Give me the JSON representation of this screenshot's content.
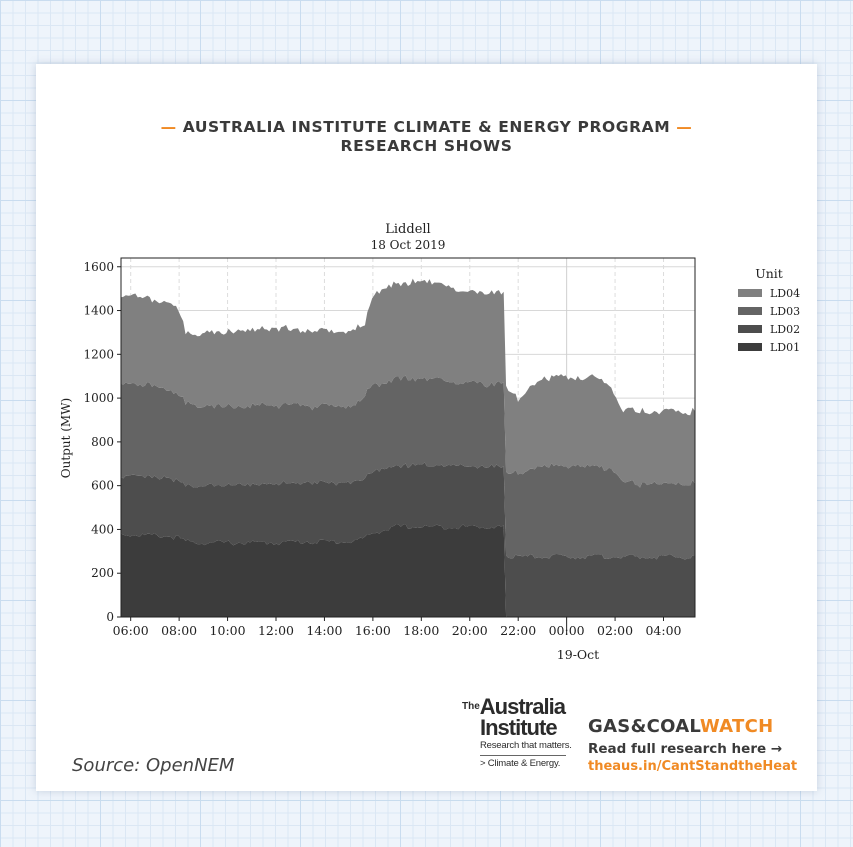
{
  "header": {
    "dash_left": "—",
    "line1": "AUSTRALIA INSTITUTE CLIMATE & ENERGY PROGRAM",
    "dash_right": "—",
    "line2": "RESEARCH SHOWS"
  },
  "colors": {
    "accent": "#f08a24",
    "LD01": "#3c3c3c",
    "LD02": "#4d4d4d",
    "LD03": "#646464",
    "LD04": "#808080"
  },
  "chart_data": {
    "type": "area",
    "stacked": true,
    "title": "Liddell",
    "subtitle": "18 Oct 2019",
    "xlabel": "",
    "ylabel": "Output (MW)",
    "ylim": [
      0,
      1640
    ],
    "yticks": [
      "0",
      "200",
      "400",
      "600",
      "800",
      "1000",
      "1200",
      "1400",
      "1600"
    ],
    "xticks": [
      "06:00",
      "08:00",
      "10:00",
      "12:00",
      "14:00",
      "16:00",
      "18:00",
      "20:00",
      "22:00",
      "00:00",
      "02:00",
      "04:00"
    ],
    "xsublabel": "19-Oct",
    "xrange_hours": [
      5.6,
      29.3
    ],
    "grid": true,
    "legend": {
      "title": "Unit",
      "placement": "right",
      "entries": [
        "LD04",
        "LD03",
        "LD02",
        "LD01"
      ]
    },
    "x": [
      5.6,
      6.5,
      7.5,
      7.9,
      8.3,
      9,
      10,
      11,
      12,
      13,
      14,
      15,
      15.3,
      15.7,
      16,
      17,
      18,
      19,
      19.4,
      20,
      21,
      21.4,
      21.5,
      22,
      23,
      24,
      25,
      25.8,
      26.2,
      27,
      28,
      29,
      29.3
    ],
    "series": [
      {
        "name": "LD01",
        "values": [
          385,
          380,
          375,
          370,
          350,
          345,
          345,
          345,
          345,
          350,
          350,
          350,
          355,
          370,
          390,
          418,
          418,
          418,
          418,
          418,
          418,
          418,
          0,
          0,
          0,
          0,
          0,
          0,
          0,
          0,
          0,
          0,
          0
        ]
      },
      {
        "name": "LD02",
        "values": [
          275,
          275,
          270,
          265,
          265,
          265,
          268,
          270,
          272,
          275,
          275,
          275,
          275,
          280,
          285,
          285,
          288,
          290,
          290,
          282,
          280,
          280,
          285,
          280,
          282,
          282,
          282,
          282,
          282,
          280,
          280,
          280,
          280
        ]
      },
      {
        "name": "LD03",
        "values": [
          430,
          425,
          415,
          410,
          375,
          375,
          365,
          365,
          365,
          360,
          355,
          355,
          360,
          380,
          400,
          405,
          400,
          395,
          380,
          385,
          385,
          385,
          385,
          385,
          420,
          420,
          420,
          410,
          360,
          340,
          340,
          338,
          340
        ]
      },
      {
        "name": "LD04",
        "values": [
          410,
          405,
          400,
          395,
          330,
          335,
          350,
          355,
          355,
          350,
          350,
          345,
          350,
          340,
          420,
          440,
          450,
          445,
          425,
          425,
          420,
          420,
          410,
          340,
          410,
          410,
          410,
          390,
          335,
          335,
          335,
          337,
          340
        ]
      }
    ]
  },
  "footer": {
    "source": "Source: OpenNEM",
    "tai_the": "The",
    "tai_line1": "Australia",
    "tai_line2": "Institute",
    "tai_tagline": "Research that matters.",
    "tai_program": "> Climate & Energy.",
    "gcw_title_a": "GAS&COAL",
    "gcw_title_b": "WATCH",
    "gcw_cta": "Read full research here →",
    "gcw_link": "theaus.in/CantStandtheHeat"
  }
}
